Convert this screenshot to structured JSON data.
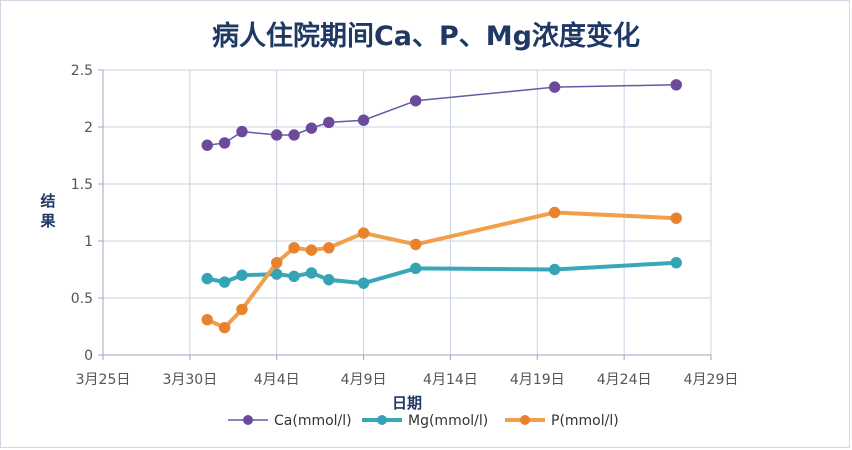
{
  "chart_data": {
    "type": "line",
    "title": "病人住院期间Ca、P、Mg浓度变化",
    "xlabel": "日期",
    "ylabel": "结果",
    "ylim": [
      0,
      2.5
    ],
    "yticks": [
      0,
      0.5,
      1,
      1.5,
      2,
      2.5
    ],
    "ytick_labels": [
      "0",
      "0.5",
      "1",
      "1.5",
      "2",
      "2.5"
    ],
    "xlim": [
      "03-25",
      "04-29"
    ],
    "xticks": [
      "03-25",
      "03-30",
      "04-04",
      "04-09",
      "04-14",
      "04-19",
      "04-24",
      "04-29"
    ],
    "xtick_labels": [
      "3月25日",
      "3月30日",
      "4月4日",
      "4月9日",
      "4月14日",
      "4月19日",
      "4月24日",
      "4月29日"
    ],
    "grid": true,
    "legend_position": "bottom",
    "x": [
      "03-31",
      "04-01",
      "04-02",
      "04-04",
      "04-05",
      "04-06",
      "04-07",
      "04-09",
      "04-12",
      "04-20",
      "04-27"
    ],
    "series": [
      {
        "name": "Ca(mmol/l)",
        "color": "#5b5ea6",
        "line_width": 1.5,
        "marker_color": "#6b4a9c",
        "values": [
          1.84,
          1.86,
          1.96,
          1.93,
          1.93,
          1.99,
          2.04,
          2.06,
          2.23,
          2.35,
          2.37
        ]
      },
      {
        "name": "Mg(mmol/l)",
        "color": "#3aa6b9",
        "line_width": 4,
        "marker_color": "#36a3b5",
        "values": [
          0.67,
          0.64,
          0.7,
          0.71,
          0.69,
          0.72,
          0.66,
          0.63,
          0.76,
          0.75,
          0.81
        ]
      },
      {
        "name": "P(mmol/l)",
        "color": "#f0a04b",
        "line_width": 4,
        "marker_color": "#e8822e",
        "values": [
          0.31,
          0.24,
          0.4,
          0.81,
          0.94,
          0.92,
          0.94,
          1.07,
          0.97,
          1.25,
          1.2
        ]
      }
    ]
  }
}
